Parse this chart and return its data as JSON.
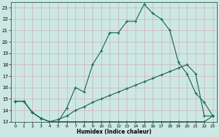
{
  "xlabel": "Humidex (Indice chaleur)",
  "background_color": "#cde8e4",
  "line_color": "#1a6b5a",
  "x_values": [
    0,
    1,
    2,
    3,
    4,
    5,
    6,
    7,
    8,
    9,
    10,
    11,
    12,
    13,
    14,
    15,
    16,
    17,
    18,
    19,
    20,
    21,
    22,
    23
  ],
  "line1_y": [
    14.8,
    14.8,
    13.8,
    13.3,
    13.0,
    13.0,
    14.2,
    16.0,
    15.6,
    18.0,
    19.2,
    20.8,
    20.8,
    21.8,
    21.8,
    23.3,
    22.5,
    22.0,
    21.0,
    18.2,
    17.2,
    15.5,
    14.7,
    13.5
  ],
  "line2_y": [
    14.8,
    14.8,
    13.8,
    13.3,
    13.0,
    13.2,
    13.5,
    14.0,
    14.3,
    14.7,
    15.0,
    15.3,
    15.6,
    15.9,
    16.2,
    16.5,
    16.8,
    17.1,
    17.4,
    17.7,
    18.0,
    17.2,
    13.5,
    13.5
  ],
  "line3_y": [
    14.8,
    14.8,
    13.8,
    13.3,
    13.0,
    13.0,
    13.0,
    13.0,
    13.0,
    13.0,
    13.0,
    13.0,
    13.0,
    13.0,
    13.0,
    13.0,
    13.0,
    13.0,
    13.0,
    13.0,
    13.0,
    13.0,
    13.0,
    13.5
  ],
  "ylim": [
    13.0,
    23.5
  ],
  "xlim": [
    -0.5,
    23.5
  ],
  "yticks": [
    13,
    14,
    15,
    16,
    17,
    18,
    19,
    20,
    21,
    22,
    23
  ],
  "xticks": [
    0,
    1,
    2,
    3,
    4,
    5,
    6,
    7,
    8,
    9,
    10,
    11,
    12,
    13,
    14,
    15,
    16,
    17,
    18,
    19,
    20,
    21,
    22,
    23
  ]
}
